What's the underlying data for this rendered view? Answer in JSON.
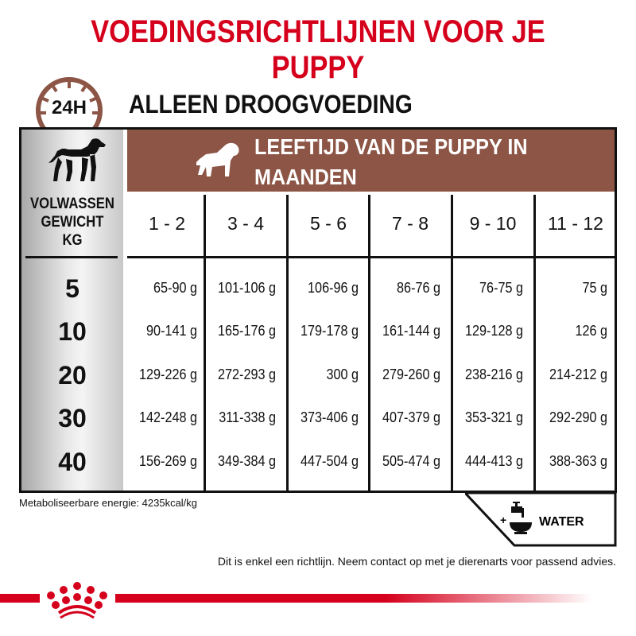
{
  "title": "VOEDINGSRICHTLIJNEN VOOR JE PUPPY",
  "clock_label": "24H",
  "subtitle": "ALLEEN DROOGVOEDING",
  "weight_label": [
    "VOLWASSEN",
    "GEWICHT",
    "KG"
  ],
  "age_label": "LEEFTIJD VAN DE PUPPY IN MAANDEN",
  "columns": [
    "1 - 2",
    "3 - 4",
    "5 - 6",
    "7 - 8",
    "9 - 10",
    "11 - 12"
  ],
  "rows": [
    {
      "kg": "5",
      "values": [
        "65-90 g",
        "101-106 g",
        "106-96 g",
        "86-76 g",
        "76-75 g",
        "75 g"
      ]
    },
    {
      "kg": "10",
      "values": [
        "90-141 g",
        "165-176 g",
        "179-178 g",
        "161-144 g",
        "129-128 g",
        "126 g"
      ]
    },
    {
      "kg": "20",
      "values": [
        "129-226 g",
        "272-293 g",
        "300 g",
        "279-260 g",
        "238-216 g",
        "214-212 g"
      ]
    },
    {
      "kg": "30",
      "values": [
        "142-248 g",
        "311-338 g",
        "373-406 g",
        "407-379 g",
        "353-321 g",
        "292-290 g"
      ]
    },
    {
      "kg": "40",
      "values": [
        "156-269 g",
        "349-384 g",
        "447-504 g",
        "505-474 g",
        "444-413 g",
        "388-363 g"
      ]
    }
  ],
  "water_plus": "+",
  "water_label": "WATER",
  "energy_note": "Metaboliseerbare energie: 4235kcal/kg",
  "disclaimer": "Dit is enkel een richtlijn. Neem contact op met je dierenarts voor passend advies.",
  "colors": {
    "brand_red": "#d5001c",
    "header_brown": "#8c5546"
  },
  "icons": [
    "clock-icon",
    "adult-dog-icon",
    "puppy-icon",
    "water-tap-bowl-icon",
    "royal-canin-crown-logo"
  ]
}
